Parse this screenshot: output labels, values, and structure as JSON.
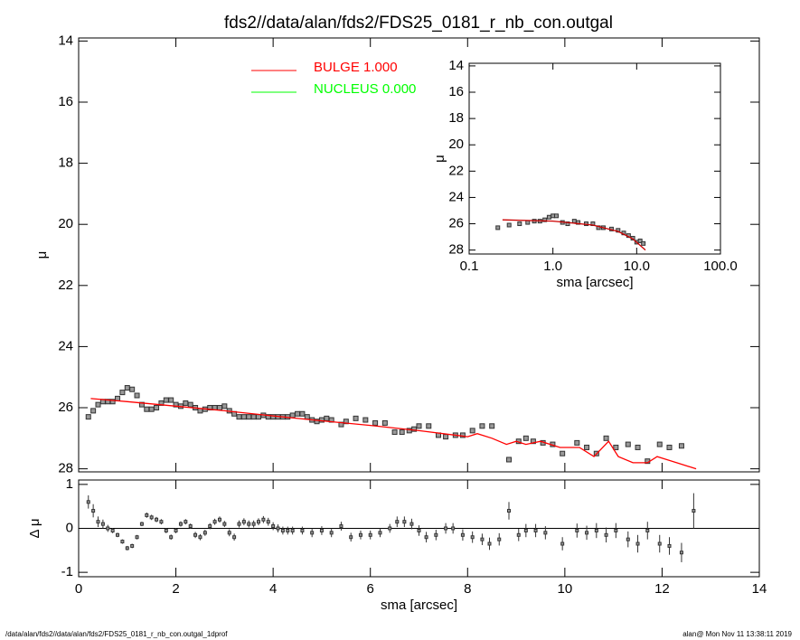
{
  "chart_data": [
    {
      "type": "scatter",
      "title": "fds2//data/alan/fds2/FDS25_0181_r_nb_con.outgal",
      "ylabel": "μ",
      "xlim": [
        0,
        14
      ],
      "ylim": [
        28.1,
        13.9
      ],
      "yticks": [
        14,
        16,
        18,
        20,
        22,
        24,
        26,
        28
      ],
      "x": [
        0.2,
        0.3,
        0.4,
        0.5,
        0.6,
        0.7,
        0.8,
        0.9,
        1.0,
        1.1,
        1.2,
        1.3,
        1.4,
        1.5,
        1.6,
        1.7,
        1.8,
        1.9,
        2.0,
        2.1,
        2.2,
        2.3,
        2.4,
        2.5,
        2.6,
        2.7,
        2.8,
        2.9,
        3.0,
        3.1,
        3.2,
        3.3,
        3.4,
        3.5,
        3.6,
        3.7,
        3.8,
        3.9,
        4.0,
        4.1,
        4.2,
        4.3,
        4.4,
        4.5,
        4.6,
        4.7,
        4.8,
        4.9,
        5.0,
        5.1,
        5.2,
        5.4,
        5.5,
        5.7,
        5.9,
        6.1,
        6.3,
        6.5,
        6.65,
        6.8,
        6.9,
        7.0,
        7.2,
        7.4,
        7.55,
        7.75,
        7.9,
        8.1,
        8.3,
        8.5,
        8.85,
        9.05,
        9.2,
        9.35,
        9.55,
        9.75,
        9.95,
        10.25,
        10.45,
        10.65,
        10.85,
        11.05,
        11.3,
        11.5,
        11.7,
        11.95,
        12.15,
        12.4
      ],
      "values": [
        26.3,
        26.1,
        25.9,
        25.8,
        25.8,
        25.8,
        25.7,
        25.5,
        25.35,
        25.4,
        25.6,
        25.9,
        26.05,
        26.05,
        26.0,
        25.85,
        25.75,
        25.75,
        25.9,
        25.95,
        25.85,
        25.9,
        26.0,
        26.1,
        26.05,
        26.0,
        26.0,
        26.0,
        25.95,
        26.1,
        26.2,
        26.3,
        26.3,
        26.3,
        26.3,
        26.3,
        26.25,
        26.3,
        26.3,
        26.3,
        26.3,
        26.3,
        26.25,
        26.2,
        26.2,
        26.3,
        26.4,
        26.45,
        26.4,
        26.35,
        26.4,
        26.55,
        26.45,
        26.35,
        26.4,
        26.5,
        26.5,
        26.8,
        26.8,
        26.75,
        26.7,
        26.6,
        26.6,
        26.9,
        26.95,
        26.9,
        26.9,
        26.75,
        26.6,
        26.6,
        27.7,
        27.1,
        27.0,
        27.1,
        27.15,
        27.2,
        27.5,
        27.15,
        27.3,
        27.5,
        27.0,
        27.3,
        27.2,
        27.3,
        27.75,
        27.2,
        27.3,
        27.25
      ],
      "model": {
        "name": "BULGE  1.000",
        "color": "#ff0000",
        "x": [
          0.25,
          1,
          2,
          3,
          4,
          5,
          6,
          7,
          8,
          8.2,
          8.5,
          8.8,
          9.0,
          9.2,
          9.5,
          9.9,
          10.3,
          10.6,
          10.9,
          11.1,
          11.4,
          11.7,
          11.9,
          12.3,
          12.7
        ],
        "values": [
          25.7,
          25.8,
          25.95,
          26.1,
          26.27,
          26.43,
          26.58,
          26.75,
          26.95,
          26.85,
          27.0,
          27.2,
          27.1,
          27.2,
          27.1,
          27.3,
          27.3,
          27.6,
          27.1,
          27.6,
          27.8,
          27.8,
          27.6,
          27.8,
          28.0
        ]
      },
      "legend": [
        {
          "label": "BULGE  1.000",
          "color": "#ff0000"
        },
        {
          "label": "NUCLEUS  0.000",
          "color": "#00ff00"
        }
      ]
    },
    {
      "type": "scatter",
      "xlabel": "sma [arcsec]",
      "ylabel": "μ",
      "log_x": true,
      "xlim": [
        0.1,
        100
      ],
      "ylim": [
        28.3,
        13.8
      ],
      "xticks": [
        0.1,
        {
          "value": 1,
          "label": "1.0"
        },
        {
          "value": 10,
          "label": "10.0"
        },
        {
          "value": 100,
          "label": "100.0"
        }
      ],
      "yticks": [
        14,
        16,
        18,
        20,
        22,
        24,
        26,
        28
      ],
      "x": [
        0.22,
        0.3,
        0.4,
        0.5,
        0.6,
        0.7,
        0.8,
        0.9,
        1.0,
        1.1,
        1.3,
        1.5,
        1.8,
        2.0,
        2.5,
        3.0,
        3.5,
        4.0,
        5.0,
        6.0,
        7.0,
        8.0,
        9.0,
        10.0,
        11.0,
        12.0
      ],
      "values": [
        26.3,
        26.1,
        26.0,
        25.9,
        25.8,
        25.8,
        25.7,
        25.5,
        25.4,
        25.4,
        25.9,
        26.0,
        25.8,
        25.9,
        26.0,
        26.0,
        26.3,
        26.3,
        26.4,
        26.5,
        26.7,
        26.9,
        27.1,
        27.4,
        27.3,
        27.5
      ],
      "model": {
        "color": "#cc0000",
        "x": [
          0.25,
          1,
          3,
          6,
          9,
          12.7
        ],
        "values": [
          25.7,
          25.8,
          26.1,
          26.58,
          27.15,
          28.0
        ]
      }
    },
    {
      "type": "errorbar",
      "xlabel": "sma [arcsec]",
      "ylabel": "Δ μ",
      "xlim": [
        0,
        14
      ],
      "ylim": [
        -1.1,
        1.1
      ],
      "xticks": [
        0,
        2,
        4,
        6,
        8,
        10,
        12,
        14
      ],
      "yticks": [
        1,
        0,
        -1
      ],
      "x": [
        0.2,
        0.3,
        0.4,
        0.5,
        0.6,
        0.7,
        0.8,
        0.9,
        1.0,
        1.1,
        1.2,
        1.3,
        1.4,
        1.5,
        1.6,
        1.7,
        1.8,
        1.9,
        2.0,
        2.1,
        2.2,
        2.3,
        2.4,
        2.5,
        2.6,
        2.7,
        2.8,
        2.9,
        3.0,
        3.1,
        3.2,
        3.3,
        3.4,
        3.5,
        3.6,
        3.7,
        3.8,
        3.9,
        4.0,
        4.1,
        4.2,
        4.3,
        4.4,
        4.6,
        4.8,
        5.0,
        5.2,
        5.4,
        5.6,
        5.8,
        6.0,
        6.2,
        6.4,
        6.55,
        6.7,
        6.85,
        7.0,
        7.15,
        7.35,
        7.55,
        7.7,
        7.9,
        8.1,
        8.3,
        8.45,
        8.65,
        8.85,
        9.05,
        9.2,
        9.4,
        9.6,
        9.95,
        10.25,
        10.45,
        10.65,
        10.85,
        11.05,
        11.3,
        11.5,
        11.7,
        11.95,
        12.15,
        12.4,
        12.65
      ],
      "values": [
        0.6,
        0.4,
        0.15,
        0.1,
        0.0,
        -0.05,
        -0.15,
        -0.3,
        -0.45,
        -0.4,
        -0.2,
        0.1,
        0.3,
        0.25,
        0.2,
        0.15,
        -0.05,
        -0.2,
        -0.05,
        0.1,
        0.15,
        0.05,
        -0.15,
        -0.2,
        -0.1,
        0.05,
        0.15,
        0.2,
        0.1,
        -0.1,
        -0.2,
        0.1,
        0.15,
        0.1,
        0.1,
        0.15,
        0.2,
        0.15,
        0.05,
        0.0,
        -0.05,
        -0.05,
        -0.05,
        -0.05,
        -0.1,
        -0.05,
        -0.1,
        0.05,
        -0.2,
        -0.15,
        -0.15,
        -0.1,
        0.0,
        0.15,
        0.15,
        0.1,
        -0.05,
        -0.2,
        -0.15,
        0.0,
        0.0,
        -0.15,
        -0.2,
        -0.25,
        -0.35,
        -0.25,
        0.4,
        -0.15,
        -0.05,
        -0.05,
        -0.1,
        -0.35,
        -0.05,
        -0.1,
        -0.05,
        -0.15,
        -0.05,
        -0.25,
        -0.35,
        -0.05,
        -0.35,
        -0.4,
        -0.55,
        0.4
      ],
      "errors": [
        0.15,
        0.15,
        0.12,
        0.1,
        0.08,
        0.06,
        0.05,
        0.05,
        0.05,
        0.05,
        0.05,
        0.05,
        0.06,
        0.06,
        0.06,
        0.06,
        0.06,
        0.06,
        0.06,
        0.06,
        0.06,
        0.06,
        0.07,
        0.07,
        0.07,
        0.07,
        0.07,
        0.07,
        0.07,
        0.08,
        0.08,
        0.08,
        0.08,
        0.08,
        0.08,
        0.08,
        0.08,
        0.09,
        0.09,
        0.09,
        0.09,
        0.09,
        0.09,
        0.09,
        0.1,
        0.1,
        0.1,
        0.1,
        0.1,
        0.1,
        0.1,
        0.1,
        0.1,
        0.12,
        0.12,
        0.12,
        0.12,
        0.12,
        0.12,
        0.12,
        0.12,
        0.13,
        0.13,
        0.13,
        0.14,
        0.14,
        0.2,
        0.14,
        0.15,
        0.15,
        0.15,
        0.15,
        0.16,
        0.16,
        0.17,
        0.17,
        0.17,
        0.18,
        0.2,
        0.2,
        0.2,
        0.2,
        0.22,
        0.4
      ]
    }
  ],
  "footer_left": "/data/alan/fds2//data/alan/fds2/FDS25_0181_r_nb_con.outgal_1dprof",
  "footer_right": "alan@  Mon Nov 11 13:38:11 2019"
}
